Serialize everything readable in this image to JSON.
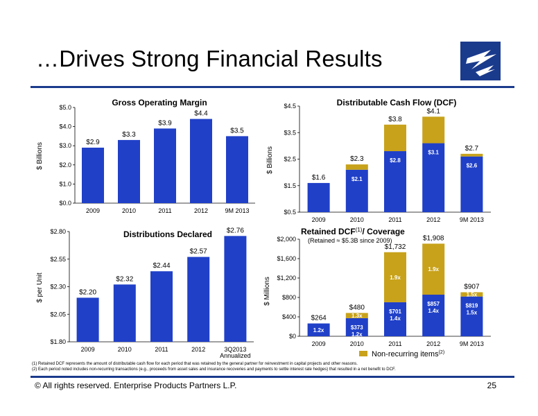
{
  "slide": {
    "title": "…Drives Strong Financial Results",
    "copyright": "©  All rights reserved. Enterprise Products Partners L.P.",
    "page_number": "25",
    "footnote1": "(1)  Retained DCF represents the amount of distributable cash flow for each period that was retained by the general partner for reinvestment in capital projects and other reasons.",
    "footnote2": "(2)  Each period noted includes non-recurring transactions (e.g., proceeds from asset sales and insurance recoveries and payments to settle interest rate hedges) that resulted in a net benefit to DCF."
  },
  "colors": {
    "brand": "#1a3a8c",
    "bar_blue": "#2040c8",
    "bar_gold": "#c8a21a"
  },
  "chart_data": [
    {
      "type": "bar",
      "title": "Gross Operating Margin",
      "ylabel": "$ Billions",
      "categories": [
        "2009",
        "2010",
        "2011",
        "2012",
        "9M 2013"
      ],
      "values": [
        2.9,
        3.3,
        3.9,
        4.4,
        3.5
      ],
      "value_labels": [
        "$2.9",
        "$3.3",
        "$3.9",
        "$4.4",
        "$3.5"
      ],
      "ylim": [
        0,
        5
      ],
      "yticks": [
        0,
        1,
        2,
        3,
        4,
        5
      ],
      "ytick_labels": [
        "$0.0",
        "$1.0",
        "$2.0",
        "$3.0",
        "$4.0",
        "$5.0"
      ]
    },
    {
      "type": "bar",
      "stacked": true,
      "title": "Distributable Cash Flow (DCF)",
      "ylabel": "$ Billions",
      "categories": [
        "2009",
        "2010",
        "2011",
        "2012",
        "9M 2013"
      ],
      "series": [
        {
          "values": [
            1.6,
            2.1,
            2.8,
            3.1,
            2.6
          ],
          "color": "#2040c8",
          "labels": [
            "",
            "$2.1",
            "$2.8",
            "$3.1",
            "$2.6"
          ]
        },
        {
          "values": [
            0,
            0.2,
            1.0,
            1.0,
            0.1
          ],
          "color": "#c8a21a",
          "labels": [
            "",
            "",
            "",
            "",
            ""
          ]
        }
      ],
      "total_labels": [
        "$1.6",
        "$2.3",
        "$3.8",
        "$4.1",
        "$2.7"
      ],
      "ylim": [
        0.5,
        4.5
      ],
      "yticks": [
        0.5,
        1.5,
        2.5,
        3.5,
        4.5
      ],
      "ytick_labels": [
        "$0.5",
        "$1.5",
        "$2.5",
        "$3.5",
        "$4.5"
      ]
    },
    {
      "type": "bar",
      "title": "Distributions Declared",
      "ylabel": "$ per Unit",
      "categories": [
        "2009",
        "2010",
        "2011",
        "2012",
        "3Q2013"
      ],
      "category_sublabels": [
        "",
        "",
        "",
        "",
        "Annualized"
      ],
      "values": [
        2.2,
        2.32,
        2.44,
        2.57,
        2.76
      ],
      "value_labels": [
        "$2.20",
        "$2.32",
        "$2.44",
        "$2.57",
        "$2.76"
      ],
      "ylim": [
        1.8,
        2.8
      ],
      "yticks": [
        1.8,
        2.05,
        2.3,
        2.55,
        2.8
      ],
      "ytick_labels": [
        "$1.80",
        "$2.05",
        "$2.30",
        "$2.55",
        "$2.80"
      ]
    },
    {
      "type": "bar",
      "stacked": true,
      "title": "Retained DCF",
      "title_sup": "(1)",
      "title_suffix": "/ Coverage",
      "subtitle": "(Retained ≈ $5.3B since 2009)",
      "ylabel": "$ Millions",
      "categories": [
        "2009",
        "2010",
        "2011",
        "2012",
        "9M 2013"
      ],
      "series": [
        {
          "values": [
            264,
            373,
            701,
            857,
            819
          ],
          "color": "#2040c8",
          "labels": [
            "",
            "$373",
            "$701",
            "$857",
            "$819"
          ],
          "sublabels": [
            "1.2x",
            "1.2x",
            "1.4x",
            "1.4x",
            "1.5x"
          ]
        },
        {
          "name": "Non-recurring items",
          "name_sup": "(2)",
          "values": [
            0,
            107,
            1031,
            1051,
            88
          ],
          "color": "#c8a21a",
          "labels": [
            "",
            "1.3x",
            "1.9x",
            "1.9x",
            "1.5x"
          ]
        }
      ],
      "total_labels": [
        "$264",
        "$480",
        "$1,732",
        "$1,908",
        "$907"
      ],
      "ylim": [
        0,
        2000
      ],
      "yticks": [
        0,
        400,
        800,
        1200,
        1600,
        2000
      ],
      "ytick_labels": [
        "$0",
        "$400",
        "$800",
        "$1,200",
        "$1,600",
        "$2,000"
      ]
    }
  ]
}
